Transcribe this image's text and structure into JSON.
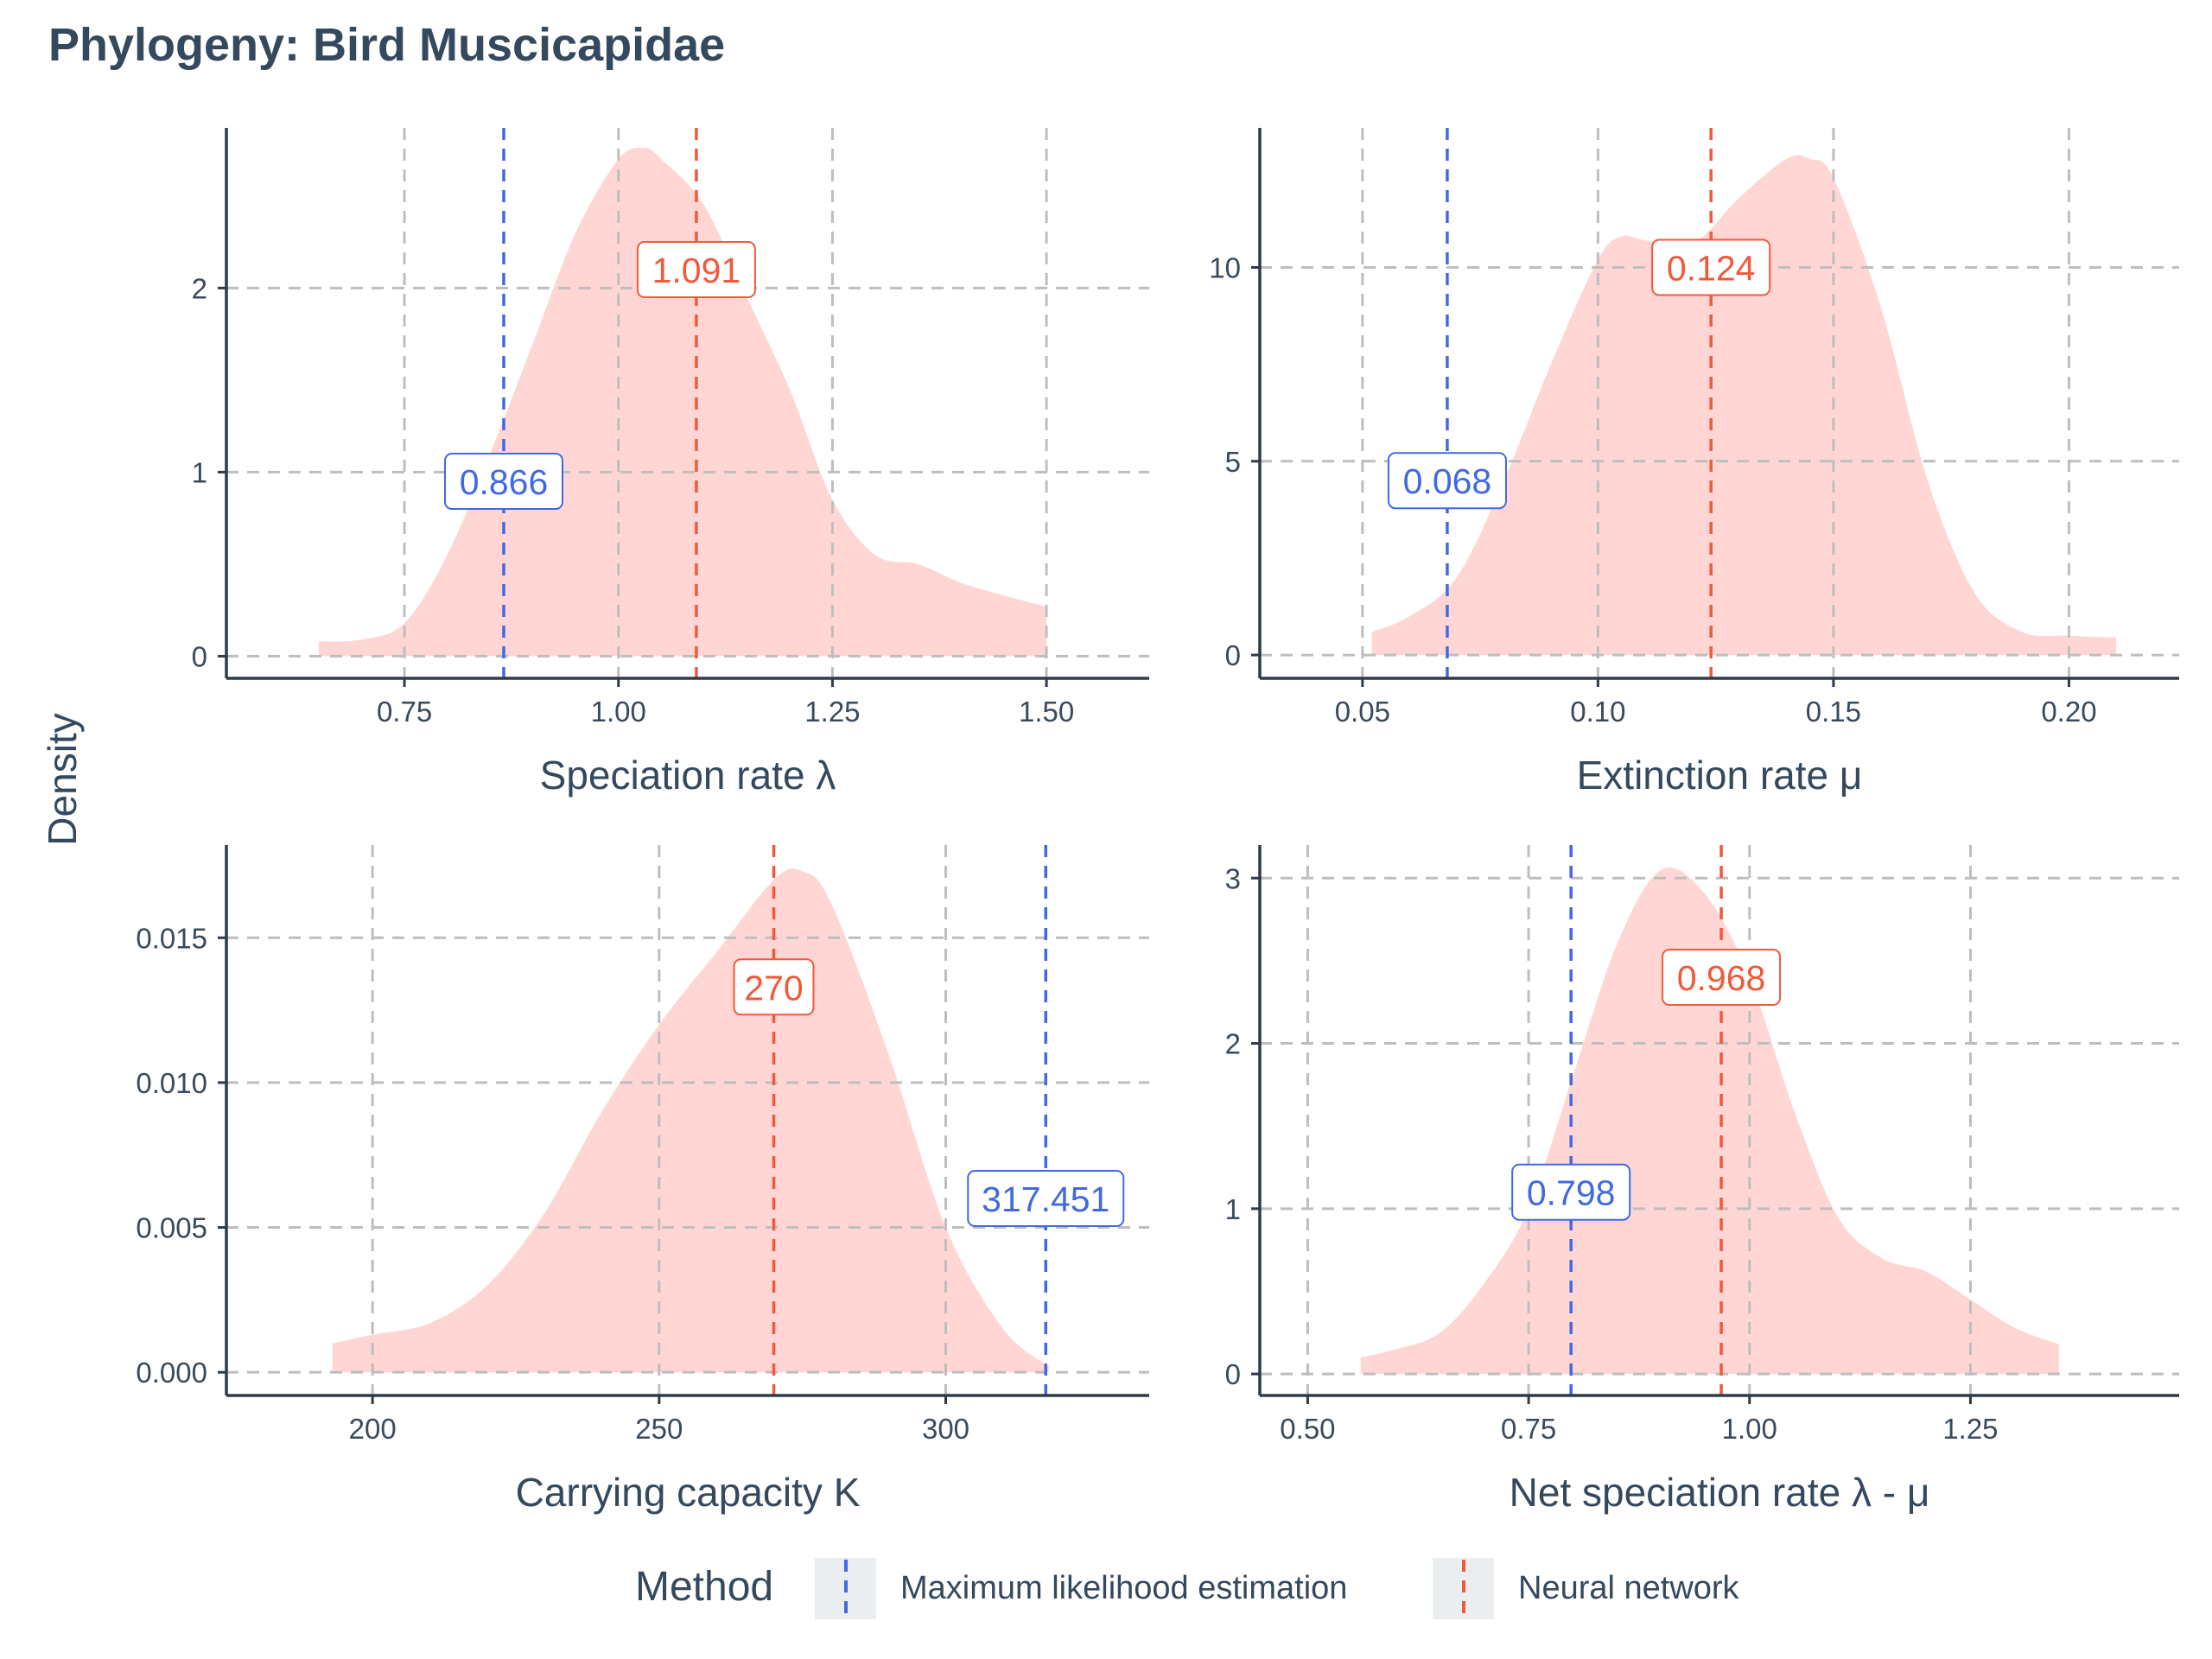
{
  "title": "Phylogeny: Bird Muscicapidae",
  "ylabel": "Density",
  "legend": {
    "title": "Method",
    "position": "bottom",
    "items": [
      {
        "label": "Maximum likelihood estimation",
        "color": "#4169E1"
      },
      {
        "label": "Neural network",
        "color": "#F05A3A"
      }
    ]
  },
  "colors": {
    "density_fill": "#FFD6D3",
    "mle": "#4169E1",
    "nn": "#F05A3A",
    "grid": "#BEBEBE",
    "axis": "#2E3B4A",
    "text": "#3A4A5C"
  },
  "chart_data": [
    {
      "type": "area",
      "xlabel": "Speciation rate λ",
      "xlim": [
        0.542,
        1.62
      ],
      "ylim": [
        -0.12,
        2.87
      ],
      "xticks": [
        0.75,
        1.0,
        1.25,
        1.5
      ],
      "xtick_labels": [
        "0.75",
        "1.00",
        "1.25",
        "1.50"
      ],
      "yticks": [
        0,
        1,
        2
      ],
      "ytick_labels": [
        "0",
        "1",
        "2"
      ],
      "density": {
        "x": [
          0.65,
          0.7,
          0.75,
          0.8,
          0.85,
          0.9,
          0.95,
          1.0,
          1.03,
          1.05,
          1.1,
          1.15,
          1.2,
          1.25,
          1.3,
          1.35,
          1.4,
          1.45,
          1.5
        ],
        "y": [
          0.08,
          0.09,
          0.18,
          0.55,
          1.1,
          1.7,
          2.3,
          2.7,
          2.76,
          2.7,
          2.45,
          1.95,
          1.45,
          0.85,
          0.55,
          0.5,
          0.4,
          0.33,
          0.27
        ]
      },
      "mle": {
        "value": 0.866,
        "label": "0.866",
        "label_y": 0.95
      },
      "nn": {
        "value": 1.091,
        "label": "1.091",
        "label_y": 2.1
      }
    },
    {
      "type": "area",
      "xlabel": "Extinction rate μ",
      "xlim": [
        0.0282,
        0.2234
      ],
      "ylim": [
        -0.6,
        13.6
      ],
      "xticks": [
        0.05,
        0.1,
        0.15,
        0.2
      ],
      "xtick_labels": [
        "0.05",
        "0.10",
        "0.15",
        "0.20"
      ],
      "yticks": [
        0,
        5,
        10
      ],
      "ytick_labels": [
        "0",
        "5",
        "10"
      ],
      "density": {
        "x": [
          0.052,
          0.06,
          0.07,
          0.08,
          0.09,
          0.1,
          0.105,
          0.11,
          0.12,
          0.13,
          0.14,
          0.145,
          0.15,
          0.16,
          0.17,
          0.18,
          0.19,
          0.2,
          0.21
        ],
        "y": [
          0.6,
          1.0,
          2.0,
          4.5,
          7.5,
          10.2,
          10.8,
          10.7,
          10.6,
          11.8,
          12.8,
          12.8,
          12.3,
          9.0,
          4.5,
          1.6,
          0.6,
          0.5,
          0.45
        ]
      },
      "mle": {
        "value": 0.068,
        "label": "0.068",
        "label_y": 4.5
      },
      "nn": {
        "value": 0.124,
        "label": "0.124",
        "label_y": 10.0
      }
    },
    {
      "type": "area",
      "xlabel": "Carrying capacity K",
      "xlim": [
        174.5,
        335.5
      ],
      "ylim": [
        -0.0008,
        0.0182
      ],
      "xticks": [
        200,
        250,
        300
      ],
      "xtick_labels": [
        "200",
        "250",
        "300"
      ],
      "yticks": [
        0.0,
        0.005,
        0.01,
        0.015
      ],
      "ytick_labels": [
        "0.000",
        "0.005",
        "0.010",
        "0.015"
      ],
      "density": {
        "x": [
          193,
          200,
          210,
          220,
          230,
          240,
          250,
          260,
          270,
          275,
          280,
          290,
          300,
          310,
          318
        ],
        "y": [
          0.001,
          0.0013,
          0.0017,
          0.003,
          0.0055,
          0.009,
          0.012,
          0.0145,
          0.017,
          0.0173,
          0.0162,
          0.011,
          0.005,
          0.0015,
          0.0002
        ]
      },
      "mle": {
        "value": 317.451,
        "label": "317.451",
        "label_y": 0.006
      },
      "nn": {
        "value": 270,
        "label": "270",
        "label_y": 0.0133
      }
    },
    {
      "type": "area",
      "xlabel": "Net speciation rate λ - μ",
      "xlim": [
        0.4458,
        1.4862
      ],
      "ylim": [
        -0.13,
        3.2
      ],
      "xticks": [
        0.5,
        0.75,
        1.0,
        1.25
      ],
      "xtick_labels": [
        "0.50",
        "0.75",
        "1.00",
        "1.25"
      ],
      "yticks": [
        0,
        1,
        2,
        3
      ],
      "ytick_labels": [
        "0",
        "1",
        "2",
        "3"
      ],
      "density": {
        "x": [
          0.56,
          0.6,
          0.65,
          0.7,
          0.75,
          0.8,
          0.85,
          0.9,
          0.95,
          1.0,
          1.05,
          1.1,
          1.15,
          1.2,
          1.25,
          1.3,
          1.35
        ],
        "y": [
          0.1,
          0.15,
          0.25,
          0.55,
          1.0,
          1.8,
          2.6,
          3.05,
          2.9,
          2.4,
          1.6,
          0.95,
          0.7,
          0.62,
          0.45,
          0.28,
          0.18
        ]
      },
      "mle": {
        "value": 0.798,
        "label": "0.798",
        "label_y": 1.1
      },
      "nn": {
        "value": 0.968,
        "label": "0.968",
        "label_y": 2.4
      }
    }
  ]
}
